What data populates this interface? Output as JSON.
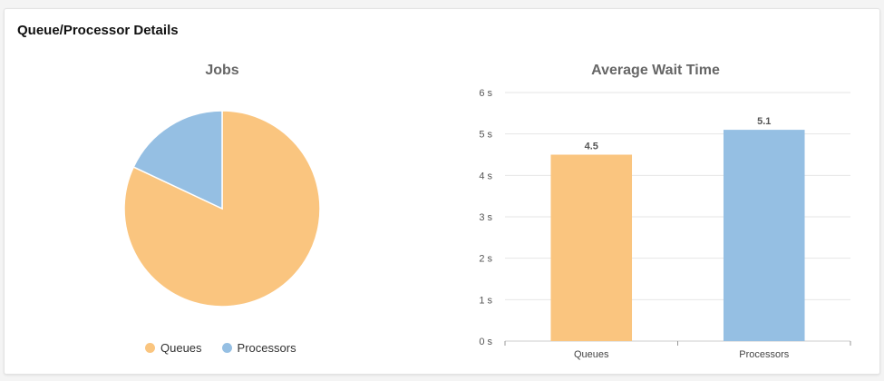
{
  "card": {
    "title": "Queue/Processor Details"
  },
  "colors": {
    "queues": "#FAC57F",
    "processors": "#95BFE3",
    "grid": "#e6e6e6"
  },
  "chart_data": [
    {
      "type": "pie",
      "title": "Jobs",
      "series": [
        {
          "name": "Queues",
          "value": 82
        },
        {
          "name": "Processors",
          "value": 18
        }
      ],
      "legend": "bottom-center"
    },
    {
      "type": "bar",
      "title": "Average Wait Time",
      "categories": [
        "Queues",
        "Processors"
      ],
      "values": [
        4.5,
        5.1
      ],
      "data_labels": [
        "4.5",
        "5.1"
      ],
      "ylim": [
        0,
        6
      ],
      "yticks": [
        "0 s",
        "1 s",
        "2 s",
        "3 s",
        "4 s",
        "5 s",
        "6 s"
      ],
      "grid": true
    }
  ]
}
